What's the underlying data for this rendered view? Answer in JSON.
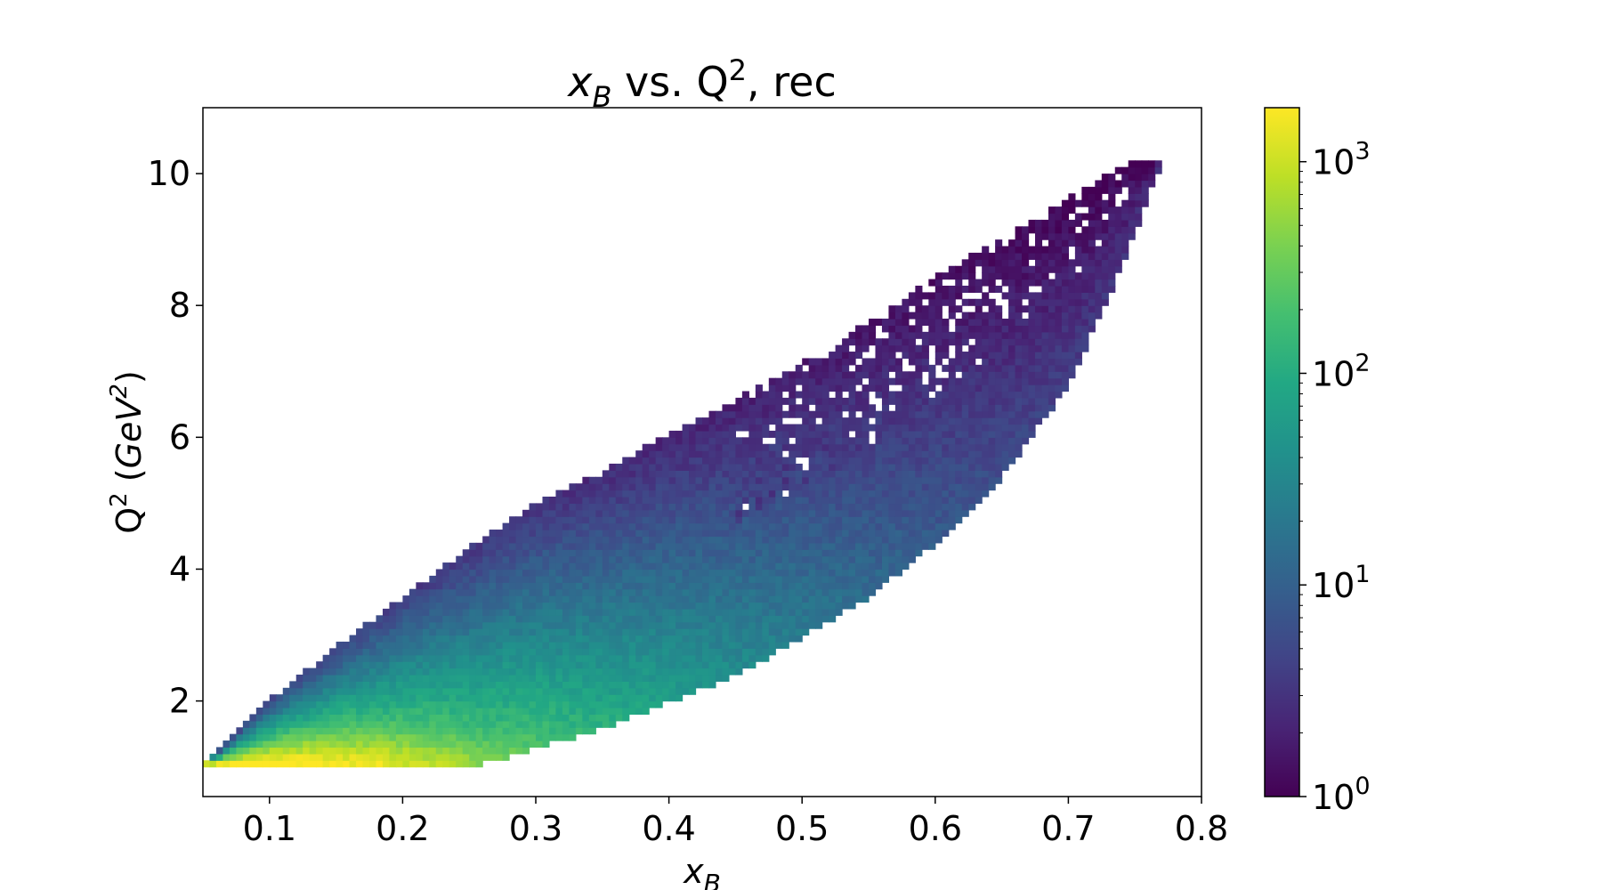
{
  "chart_data": {
    "type": "heatmap",
    "title": {
      "x_var": "x",
      "x_sub": "B",
      "mid": " vs. Q",
      "sup": "2",
      "tail": ", rec"
    },
    "xlabel": {
      "var": "x",
      "sub": "B"
    },
    "ylabel": {
      "pre": "Q",
      "sup": "2",
      "mid": " (",
      "unit": "GeV",
      "unit_sup": "2",
      "post": ")"
    },
    "xlim": [
      0.05,
      0.8
    ],
    "ylim": [
      0.55,
      11.0
    ],
    "x_ticks": [
      0.1,
      0.2,
      0.3,
      0.4,
      0.5,
      0.6,
      0.7,
      0.8
    ],
    "x_tick_labels": [
      "0.1",
      "0.2",
      "0.3",
      "0.4",
      "0.5",
      "0.6",
      "0.7",
      "0.8"
    ],
    "y_ticks": [
      2,
      4,
      6,
      8,
      10
    ],
    "y_tick_labels": [
      "2",
      "4",
      "6",
      "8",
      "10"
    ],
    "colorbar": {
      "scale": "log",
      "min": 1,
      "max": 1800,
      "colormap": "viridis",
      "ticks": [
        1,
        10,
        100,
        1000
      ],
      "tick_labels": [
        {
          "base": "10",
          "exp": "0"
        },
        {
          "base": "10",
          "exp": "1"
        },
        {
          "base": "10",
          "exp": "2"
        },
        {
          "base": "10",
          "exp": "3"
        }
      ]
    },
    "bins": {
      "nx": 150,
      "ny": 105
    },
    "distribution": {
      "description_free": true,
      "q2_min": 1.0,
      "upper_edge": [
        [
          0.05,
          1.0
        ],
        [
          0.1,
          2.0
        ],
        [
          0.15,
          2.8
        ],
        [
          0.2,
          3.55
        ],
        [
          0.25,
          4.3
        ],
        [
          0.3,
          5.0
        ],
        [
          0.35,
          5.45
        ],
        [
          0.4,
          6.05
        ],
        [
          0.45,
          6.55
        ],
        [
          0.5,
          7.1
        ],
        [
          0.55,
          7.75
        ],
        [
          0.6,
          8.4
        ],
        [
          0.65,
          9.0
        ],
        [
          0.7,
          9.6
        ],
        [
          0.75,
          10.2
        ],
        [
          0.77,
          10.2
        ]
      ],
      "lower_edge": [
        [
          0.05,
          1.0
        ],
        [
          0.25,
          1.0
        ],
        [
          0.3,
          1.3
        ],
        [
          0.35,
          1.6
        ],
        [
          0.4,
          2.0
        ],
        [
          0.45,
          2.4
        ],
        [
          0.5,
          3.0
        ],
        [
          0.55,
          3.6
        ],
        [
          0.6,
          4.4
        ],
        [
          0.65,
          5.4
        ],
        [
          0.7,
          6.8
        ],
        [
          0.74,
          8.6
        ],
        [
          0.77,
          10.2
        ]
      ],
      "peak": [
        0.2,
        1.1
      ]
    }
  }
}
